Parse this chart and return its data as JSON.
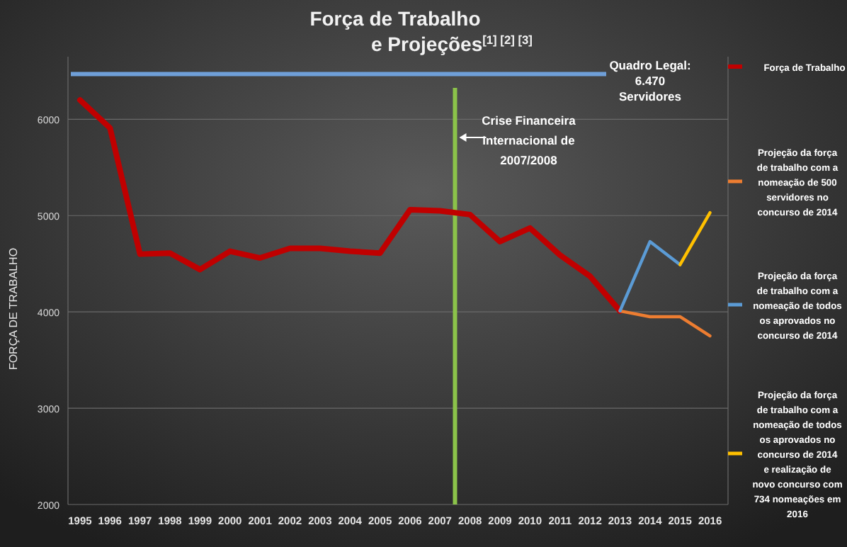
{
  "chart_data": {
    "type": "line",
    "title": "Força de Trabalho e Projeções$^{[1] [2] [3]}$",
    "ylabel": "FORÇA DE TRABALHO",
    "x": [
      1995,
      1996,
      1997,
      1998,
      1999,
      2000,
      2001,
      2002,
      2003,
      2004,
      2005,
      2006,
      2007,
      2008,
      2009,
      2010,
      2011,
      2012,
      2013
    ],
    "xlim": [
      1994.6,
      2016.6
    ],
    "xticks": [
      1995,
      1996,
      1997,
      1998,
      1999,
      2000,
      2001,
      2002,
      2003,
      2004,
      2005,
      2006,
      2007,
      2008,
      2009,
      2010,
      2011,
      2012,
      2013,
      2014,
      2015,
      2016
    ],
    "ylim": [
      2000,
      6650
    ],
    "yticks": [
      2000,
      3000,
      4000,
      5000,
      6000
    ],
    "grid": "y",
    "legend": "right",
    "marker": "none",
    "line_style": "solid",
    "series": [
      {
        "name": "Força de Trabalho",
        "color": "#c00000",
        "values": [
          6200,
          5910,
          4600,
          4610,
          4440,
          4630,
          4560,
          4660,
          4660,
          4630,
          4610,
          5060,
          5050,
          5010,
          4730,
          4870,
          4590,
          4370,
          4010
        ]
      },
      {
        "name": "Projeção da força de trabalho com a nomeação de 500 servidores no concurso de 2014",
        "color": "#ed7d31",
        "x": [
          2013,
          2014,
          2015,
          2016
        ],
        "values": [
          4010,
          3950,
          3950,
          3750
        ]
      },
      {
        "name": "Projeção da força de trabalho com a nomeação de todos os aprovados no concurso de 2014",
        "color": "#5b9bd5",
        "x": [
          2013,
          2014,
          2015
        ],
        "values": [
          4010,
          4730,
          4490
        ]
      },
      {
        "name": "Projeção da força de trabalho com a nomeação de todos os aprovados no concurso de 2014 e realização de novo concurso com 734 nomeações em 2016",
        "color": "#ffc000",
        "x": [
          2015,
          2016
        ],
        "values": [
          4490,
          5030
        ]
      }
    ],
    "ref_lines": [
      {
        "axis": "y",
        "value": 6470,
        "label": "Quadro Legal: 6.470 Servidores",
        "color": "#6f9fd8"
      },
      {
        "axis": "x",
        "value": 2007.5,
        "label": "Crise Financeira Internacional de 2007/2008",
        "color": "#8bc34a"
      }
    ]
  }
}
